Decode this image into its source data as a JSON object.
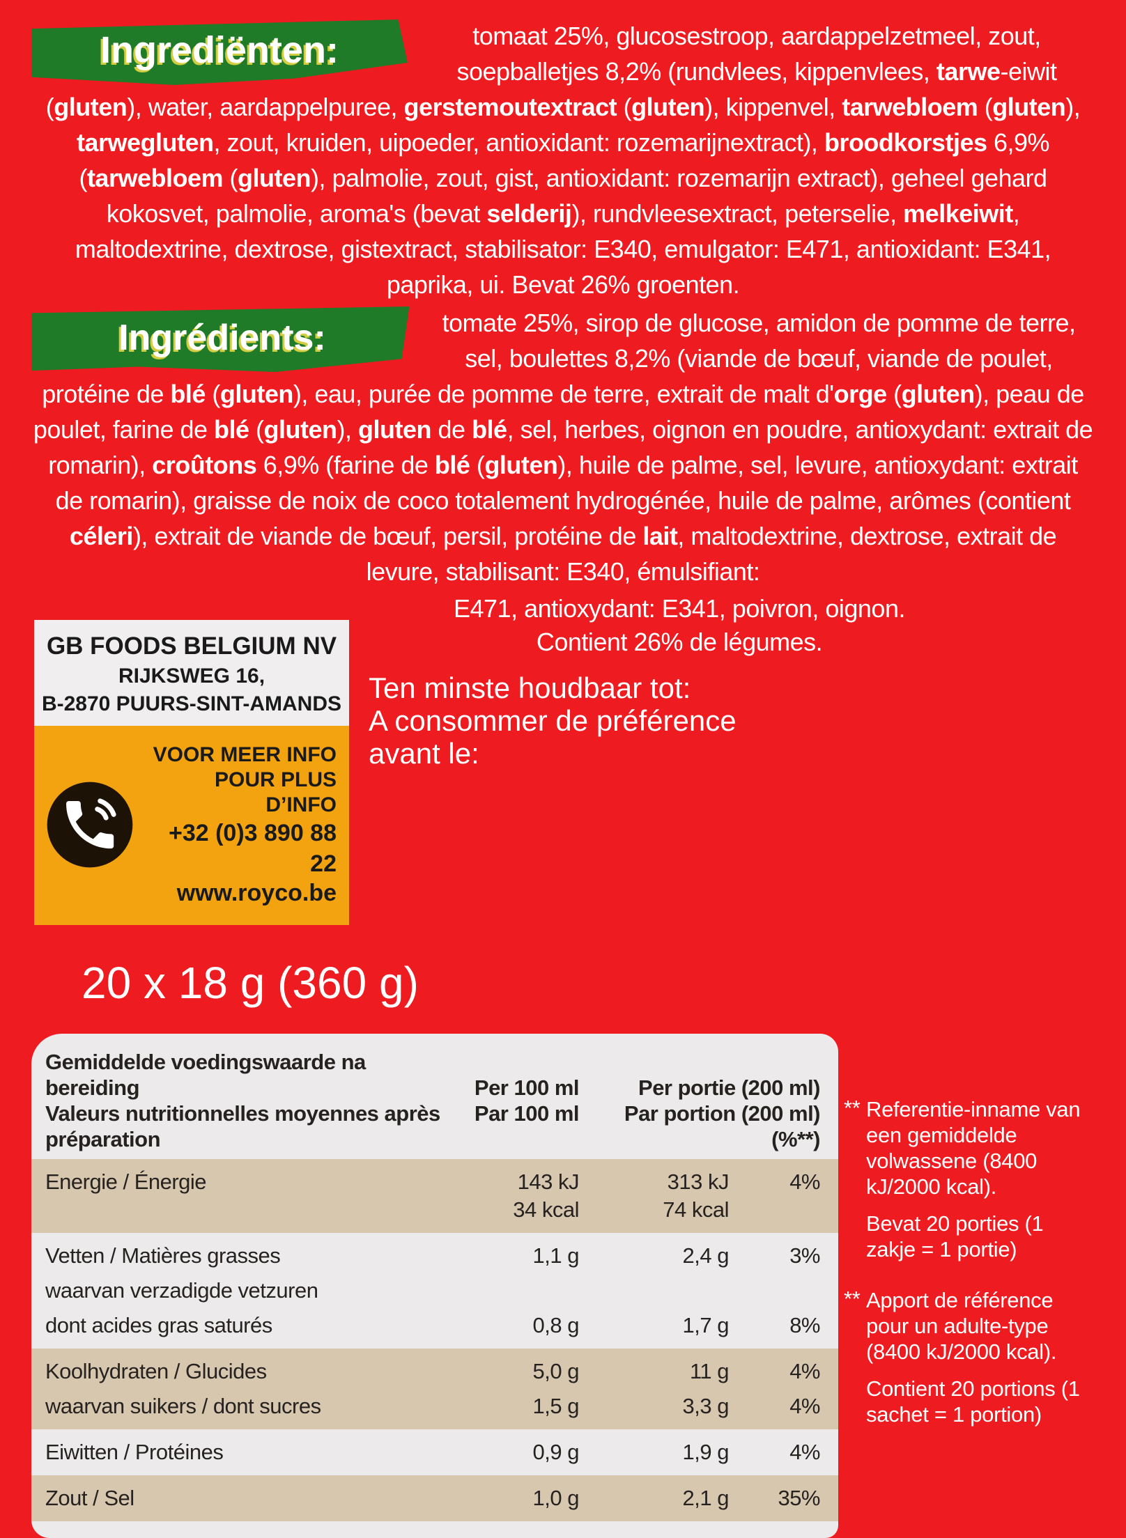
{
  "colors": {
    "background_red": "#ee1b20",
    "banner_green": "#1f7b27",
    "info_orange": "#f2a30f",
    "table_background": "#edeaeb",
    "table_shade_beige": "#d7c7af",
    "text_white": "#ffffff",
    "table_text": "#262220",
    "phone_icon_black": "#1c1206",
    "banner_text_shadow_yellow": "#f2dc46"
  },
  "ingredients_nl": {
    "banner_label": "Ingrediënten:",
    "text_html": "tomaat 25%, glucosestroop, aardappelzetmeel, zout, soepballetjes 8,2% (rundvlees, kippenvlees, <b>tarwe</b>-eiwit (<b>gluten</b>), water, aardappelpuree, <b>gerstemoutextract</b> (<b>gluten</b>), kippenvel, <b>tarwebloem</b> (<b>gluten</b>), <b>tarwegluten</b>, zout, kruiden, uipoeder, antioxidant: rozemarijnextract), <b>broodkorstjes</b> 6,9% (<b>tarwebloem</b> (<b>gluten</b>), palmolie, zout, gist, antioxidant: rozemarijn extract), geheel gehard kokosvet, palmolie, aroma's (bevat <b>selderij</b>), rundvleesextract, peterselie, <b>melkeiwit</b>, maltodextrine, dextrose, gistextract, stabilisator: E340, emulgator: E471, antioxidant: E341, paprika, ui. Bevat 26% groenten."
  },
  "ingredients_fr": {
    "banner_label": "Ingrédients:",
    "text_html": "tomate 25%, sirop de glucose, amidon de pomme de terre, sel, boulettes 8,2% (viande de bœuf, viande de poulet, protéine de <b>blé</b> (<b>gluten</b>), eau, purée de pomme de terre, extrait de malt d'<b>orge</b> (<b>gluten</b>), peau de poulet, farine de <b>blé</b> (<b>gluten</b>), <b>gluten</b> de <b>blé</b>, sel, herbes, oignon en poudre, antioxydant: extrait de romarin), <b>croûtons</b> 6,9% (farine de <b>blé</b> (<b>gluten</b>), huile de palme, sel, levure, antioxydant: extrait de romarin), graisse de noix de coco totalement hydrogénée, huile de palme, arômes (contient <b>céleri</b>), extrait de viande de bœuf, persil, protéine de <b>lait</b>, maltodextrine, dextrose, extrait de levure, stabilisant: E340, émulsifiant:",
    "tail_line1": "E471, antioxydant: E341, poivron, oignon.",
    "tail_line2": "Contient 26% de légumes."
  },
  "manufacturer": {
    "company": "GB FOODS BELGIUM NV",
    "street": "RIJKSWEG 16,",
    "city": "B-2870 PUURS-SINT-AMANDS",
    "info_nl": "VOOR MEER INFO",
    "info_fr": "POUR PLUS D’INFO",
    "phone": "+32 (0)3 890 88 22",
    "website": "www.royco.be"
  },
  "best_before": {
    "line1": "Ten minste houdbaar tot:",
    "line2": "A consommer de préférence",
    "line3": "avant le:"
  },
  "net_weight": "20 x 18 g (360 g)",
  "nutrition": {
    "header": {
      "title_nl": "Gemiddelde voedingswaarde na bereiding",
      "title_fr": "Valeurs nutritionnelles moyennes après préparation",
      "col1_nl": "Per 100 ml",
      "col1_fr": "Par 100 ml",
      "col2_nl": "Per portie (200 ml)",
      "col2_fr": "Par portion (200 ml)",
      "pct": "(%**)"
    },
    "bands": [
      {
        "shade": true,
        "rows": [
          {
            "label": "Energie / Énergie",
            "v1": [
              "143 kJ",
              "34 kcal"
            ],
            "v2": [
              "313 kJ",
              "74 kcal"
            ],
            "pct": "4%"
          }
        ]
      },
      {
        "shade": false,
        "rows": [
          {
            "label": "Vetten / Matières grasses",
            "v1": [
              "1,1 g"
            ],
            "v2": [
              "2,4 g"
            ],
            "pct": "3%"
          },
          {
            "label": "waarvan verzadigde vetzuren",
            "v1": [],
            "v2": [],
            "pct": ""
          },
          {
            "label": "dont acides gras saturés",
            "v1": [
              "0,8 g"
            ],
            "v2": [
              "1,7 g"
            ],
            "pct": "8%"
          }
        ]
      },
      {
        "shade": true,
        "rows": [
          {
            "label": "Koolhydraten / Glucides",
            "v1": [
              "5,0 g"
            ],
            "v2": [
              "11 g"
            ],
            "pct": "4%"
          },
          {
            "label": "waarvan suikers / dont sucres",
            "v1": [
              "1,5 g"
            ],
            "v2": [
              "3,3 g"
            ],
            "pct": "4%"
          }
        ]
      },
      {
        "shade": false,
        "rows": [
          {
            "label": "Eiwitten / Protéines",
            "v1": [
              "0,9 g"
            ],
            "v2": [
              "1,9 g"
            ],
            "pct": "4%"
          }
        ]
      },
      {
        "shade": true,
        "rows": [
          {
            "label": "Zout / Sel",
            "v1": [
              "1,0 g"
            ],
            "v2": [
              "2,1 g"
            ],
            "pct": "35%"
          }
        ]
      }
    ]
  },
  "notes": [
    {
      "marker": "**",
      "text": "Referentie-inname van een gemiddelde volwassene (8400 kJ/2000 kcal)."
    },
    {
      "marker": "",
      "text": "Bevat 20 porties (1 zakje = 1 portie)"
    },
    {
      "marker": "**",
      "text": "Apport de référence pour un adulte-type (8400 kJ/2000 kcal)."
    },
    {
      "marker": "",
      "text": "Contient 20 portions (1 sachet = 1 portion)"
    }
  ]
}
